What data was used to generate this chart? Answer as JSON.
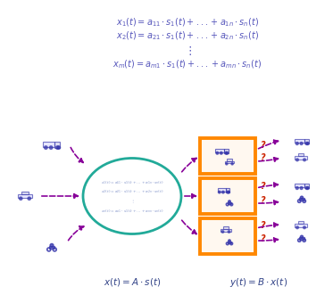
{
  "bg_color": "#ffffff",
  "eq_color": "#5555bb",
  "ellipse_color": "#22aa99",
  "arrow_color": "#880099",
  "box_color": "#ff8800",
  "q_color": "#cc2200",
  "inner_text_color": "#8899cc",
  "label_color": "#334488",
  "bottom_label_left": "$x(t) = A \\cdot s(t)$",
  "bottom_label_right": "$y(t) = B \\cdot x(t)$",
  "eq_lines": [
    "$x_1(t) = a_{11} \\cdot s_1(t) + ... + a_{1n} \\cdot s_n(t)$",
    "$x_2(t) = a_{21} \\cdot s_1(t) + ... + a_{2n} \\cdot s_n(t)$",
    "$\\vdots$",
    "$x_m(t) = a_{m1} \\cdot s_1(t) + ... + a_{mn} \\cdot s_n(t)$"
  ],
  "inner_lines": [
    "$x_1(t)=a_{11}\\cdot s_1(t)+\\ldots+a_{1n}\\cdot s_n(t)$",
    "$x_2(t)=a_{21}\\cdot s_1(t)+\\ldots+a_{2n}\\cdot s_n(t)$",
    "$\\vdots$",
    "$x_n(t)=a_{n1}\\cdot s_1(t)+\\ldots+a_{nn}\\cdot s_n(t)$"
  ]
}
